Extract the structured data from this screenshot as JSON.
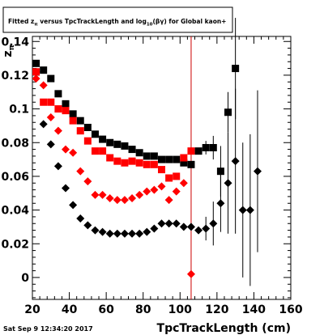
{
  "footer": {
    "timestamp": "Sat Sep  9 12:34:20 2017"
  },
  "chart_data": {
    "type": "scatter",
    "title": "Fitted  z_{π} versus TpcTrackLength and log_{10}(βγ) for Global kaon+",
    "title_parts": {
      "t1": "Fitted  z",
      "t1_sub": "π",
      "t2": "  versus TpcTrackLength and log",
      "t2_sub": "10",
      "t3": "(βγ) for Global kaon+"
    },
    "xlabel": "TpcTrackLength (cm)",
    "ylabel": "z",
    "ylabel_sub": "π",
    "xlim": [
      20,
      160
    ],
    "ylim": [
      -0.013,
      0.143
    ],
    "x_ticks": [
      "20",
      "40",
      "60",
      "80",
      "100",
      "120",
      "140",
      "160"
    ],
    "y_ticks": [
      "0",
      "0.02",
      "0.04",
      "0.06",
      "0.08",
      "0.1",
      "0.12",
      "0.14"
    ],
    "vertical_line": {
      "x": 106,
      "color": "#cc0000"
    },
    "grid": false,
    "series": [
      {
        "marker": "square",
        "color": "#000000",
        "points": [
          {
            "x": 22,
            "y": 0.127
          },
          {
            "x": 26,
            "y": 0.123
          },
          {
            "x": 30,
            "y": 0.118
          },
          {
            "x": 34,
            "y": 0.109
          },
          {
            "x": 38,
            "y": 0.103
          },
          {
            "x": 42,
            "y": 0.097
          },
          {
            "x": 46,
            "y": 0.093
          },
          {
            "x": 50,
            "y": 0.089
          },
          {
            "x": 54,
            "y": 0.085
          },
          {
            "x": 58,
            "y": 0.082
          },
          {
            "x": 62,
            "y": 0.08
          },
          {
            "x": 66,
            "y": 0.079
          },
          {
            "x": 70,
            "y": 0.078
          },
          {
            "x": 74,
            "y": 0.076
          },
          {
            "x": 78,
            "y": 0.074
          },
          {
            "x": 82,
            "y": 0.072
          },
          {
            "x": 86,
            "y": 0.072
          },
          {
            "x": 90,
            "y": 0.07
          },
          {
            "x": 94,
            "y": 0.07
          },
          {
            "x": 98,
            "y": 0.07
          },
          {
            "x": 102,
            "y": 0.068
          },
          {
            "x": 106,
            "y": 0.067
          },
          {
            "x": 110,
            "y": 0.075
          },
          {
            "x": 114,
            "y": 0.077,
            "err": 0.004
          },
          {
            "x": 118,
            "y": 0.077,
            "err": 0.007
          },
          {
            "x": 122,
            "y": 0.063,
            "err": 0.015
          },
          {
            "x": 126,
            "y": 0.098,
            "err": 0.012
          },
          {
            "x": 130,
            "y": 0.124,
            "err": 0.03
          }
        ]
      },
      {
        "marker": "diamond",
        "color": "#000000",
        "points": [
          {
            "x": 22,
            "y": 0.122
          },
          {
            "x": 26,
            "y": 0.091
          },
          {
            "x": 30,
            "y": 0.079
          },
          {
            "x": 34,
            "y": 0.066
          },
          {
            "x": 38,
            "y": 0.053
          },
          {
            "x": 42,
            "y": 0.043
          },
          {
            "x": 46,
            "y": 0.035
          },
          {
            "x": 50,
            "y": 0.031
          },
          {
            "x": 54,
            "y": 0.028
          },
          {
            "x": 58,
            "y": 0.027
          },
          {
            "x": 62,
            "y": 0.026
          },
          {
            "x": 66,
            "y": 0.026
          },
          {
            "x": 70,
            "y": 0.026
          },
          {
            "x": 74,
            "y": 0.026
          },
          {
            "x": 78,
            "y": 0.026
          },
          {
            "x": 82,
            "y": 0.027
          },
          {
            "x": 86,
            "y": 0.029
          },
          {
            "x": 90,
            "y": 0.032
          },
          {
            "x": 94,
            "y": 0.032
          },
          {
            "x": 98,
            "y": 0.032
          },
          {
            "x": 102,
            "y": 0.03
          },
          {
            "x": 106,
            "y": 0.03
          },
          {
            "x": 110,
            "y": 0.028
          },
          {
            "x": 114,
            "y": 0.029,
            "err": 0.007
          },
          {
            "x": 118,
            "y": 0.032,
            "err": 0.013
          },
          {
            "x": 122,
            "y": 0.044,
            "err": 0.017
          },
          {
            "x": 126,
            "y": 0.056,
            "err": 0.03
          },
          {
            "x": 130,
            "y": 0.069,
            "err": 0.043
          },
          {
            "x": 134,
            "y": 0.04,
            "err": 0.04
          },
          {
            "x": 138,
            "y": 0.04,
            "err": 0.045
          },
          {
            "x": 142,
            "y": 0.063,
            "err": 0.048
          }
        ]
      },
      {
        "marker": "square",
        "color": "#ff0000",
        "points": [
          {
            "x": 22,
            "y": 0.122
          },
          {
            "x": 26,
            "y": 0.104
          },
          {
            "x": 30,
            "y": 0.104
          },
          {
            "x": 34,
            "y": 0.1
          },
          {
            "x": 38,
            "y": 0.099
          },
          {
            "x": 42,
            "y": 0.093
          },
          {
            "x": 46,
            "y": 0.087
          },
          {
            "x": 50,
            "y": 0.081
          },
          {
            "x": 54,
            "y": 0.075
          },
          {
            "x": 58,
            "y": 0.075
          },
          {
            "x": 62,
            "y": 0.071
          },
          {
            "x": 66,
            "y": 0.069
          },
          {
            "x": 70,
            "y": 0.068
          },
          {
            "x": 74,
            "y": 0.069
          },
          {
            "x": 78,
            "y": 0.068
          },
          {
            "x": 82,
            "y": 0.067
          },
          {
            "x": 86,
            "y": 0.067
          },
          {
            "x": 90,
            "y": 0.064
          },
          {
            "x": 94,
            "y": 0.059
          },
          {
            "x": 98,
            "y": 0.06
          },
          {
            "x": 102,
            "y": 0.071
          },
          {
            "x": 106,
            "y": 0.075
          }
        ]
      },
      {
        "marker": "diamond",
        "color": "#ff0000",
        "points": [
          {
            "x": 22,
            "y": 0.118
          },
          {
            "x": 26,
            "y": 0.114
          },
          {
            "x": 30,
            "y": 0.095
          },
          {
            "x": 34,
            "y": 0.087
          },
          {
            "x": 38,
            "y": 0.076
          },
          {
            "x": 42,
            "y": 0.074
          },
          {
            "x": 46,
            "y": 0.063
          },
          {
            "x": 50,
            "y": 0.057
          },
          {
            "x": 54,
            "y": 0.049
          },
          {
            "x": 58,
            "y": 0.049
          },
          {
            "x": 62,
            "y": 0.047
          },
          {
            "x": 66,
            "y": 0.046
          },
          {
            "x": 70,
            "y": 0.046
          },
          {
            "x": 74,
            "y": 0.047
          },
          {
            "x": 78,
            "y": 0.049
          },
          {
            "x": 82,
            "y": 0.051
          },
          {
            "x": 86,
            "y": 0.052
          },
          {
            "x": 90,
            "y": 0.054
          },
          {
            "x": 94,
            "y": 0.046
          },
          {
            "x": 98,
            "y": 0.051
          },
          {
            "x": 102,
            "y": 0.056
          },
          {
            "x": 106,
            "y": 0.002
          }
        ]
      }
    ]
  }
}
